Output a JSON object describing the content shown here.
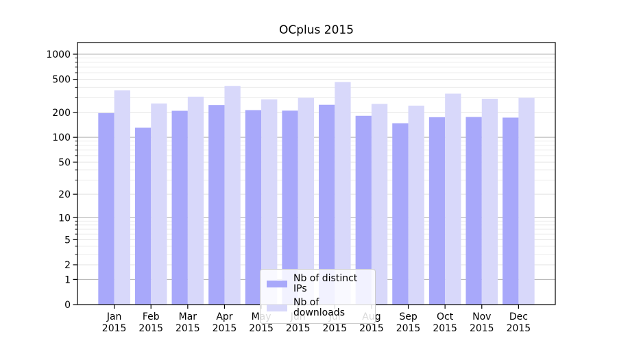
{
  "chart_data": {
    "type": "bar",
    "title": "OCplus 2015",
    "xlabel": "",
    "ylabel": "",
    "y_scale": "log1p",
    "ylim": [
      0,
      1380
    ],
    "grid": true,
    "legend_position": "lower-center",
    "categories": [
      "Jan",
      "Feb",
      "Mar",
      "Apr",
      "May",
      "Jun",
      "Jul",
      "Aug",
      "Sep",
      "Oct",
      "Nov",
      "Dec"
    ],
    "category_year": "2015",
    "series": [
      {
        "name": "Nb of distinct IPs",
        "color": "#a8a8fa",
        "values": [
          196,
          131,
          209,
          245,
          213,
          210,
          247,
          182,
          148,
          175,
          176,
          173
        ]
      },
      {
        "name": "Nb of downloads",
        "color": "#d8d8fa",
        "values": [
          369,
          256,
          309,
          416,
          287,
          300,
          463,
          253,
          241,
          336,
          292,
          300
        ]
      }
    ],
    "y_ticks": [
      0,
      1,
      2,
      5,
      10,
      20,
      50,
      100,
      200,
      500,
      1000
    ],
    "y_major_ticks": [
      1,
      10,
      100,
      1000
    ],
    "y_minor_gridlines": [
      3,
      4,
      6,
      7,
      8,
      9,
      30,
      40,
      60,
      70,
      80,
      90,
      300,
      400,
      600,
      700,
      800,
      900
    ],
    "colors": {
      "grid_major": "#b0b0b0",
      "grid_light": "#e2e2e2",
      "grid_minor": "#ececec",
      "axis": "#000000",
      "text": "#000000"
    }
  }
}
